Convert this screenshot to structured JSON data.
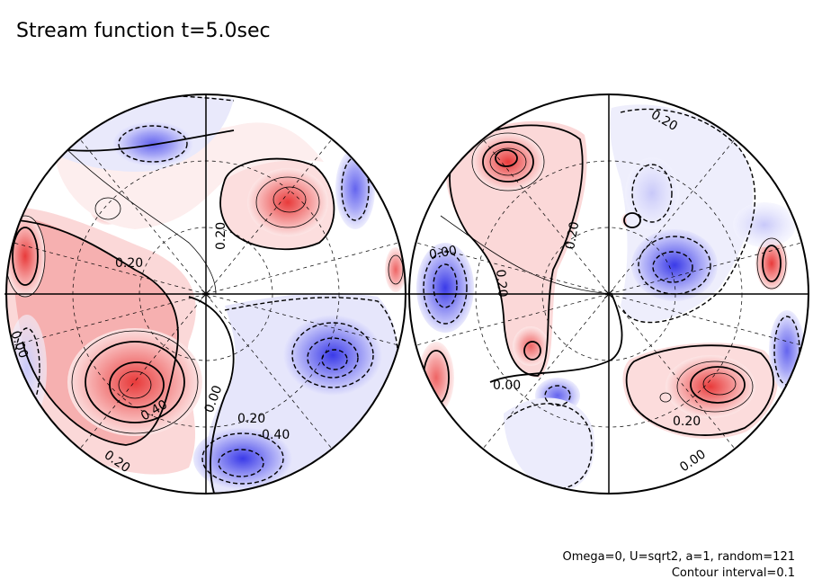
{
  "title": "Stream function t=5.0sec",
  "info_line1": "Omega=0, U=sqrt2, a=1, random=121",
  "info_line2": "Contour interval=0.1",
  "colors": {
    "positive": "#e53c3c",
    "negative": "#3c3ce6",
    "line": "#000000",
    "grid": "#000000"
  },
  "left_hemisphere_labels": [
    {
      "text": "0.20"
    },
    {
      "text": "0.20"
    },
    {
      "text": "0.00"
    },
    {
      "text": "0.40"
    },
    {
      "text": "0.00"
    },
    {
      "text": "0.20"
    },
    {
      "text": "-0.40"
    },
    {
      "text": "0.20"
    }
  ],
  "right_hemisphere_labels": [
    {
      "text": "0.20"
    },
    {
      "text": "0.00"
    },
    {
      "text": "0.20"
    },
    {
      "text": "0.20"
    },
    {
      "text": "0.00"
    },
    {
      "text": "0.20"
    },
    {
      "text": "0.00"
    }
  ]
}
